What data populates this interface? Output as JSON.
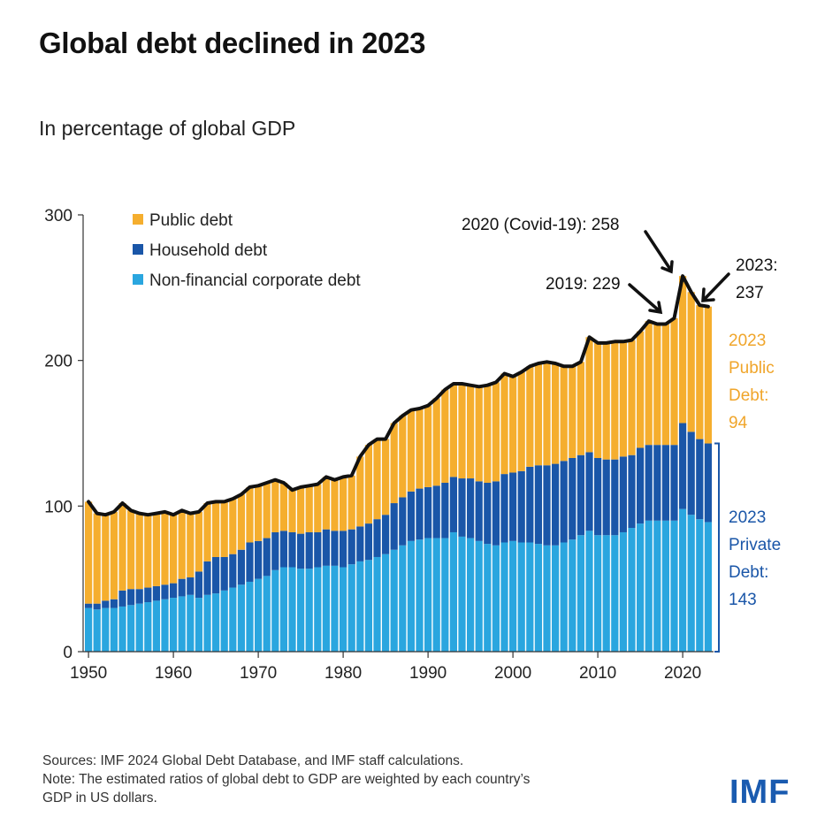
{
  "title": "Global debt declined in 2023",
  "subtitle": "In percentage of global GDP",
  "footer": {
    "sources": "Sources: IMF 2024 Global Debt Database, and IMF staff calculations.",
    "note_line1": "Note: The estimated ratios of global debt to GDP are weighted by each country’s",
    "note_line2": "GDP in US dollars."
  },
  "logo": "IMF",
  "colors": {
    "public": "#F5AE2E",
    "household": "#1A56A8",
    "corporate": "#2AA6DF",
    "total_line": "#111111",
    "public_label": "#F0A52A",
    "private_label": "#1A56A8"
  },
  "chart_data": {
    "type": "bar",
    "stacked": true,
    "ylim": [
      0,
      300
    ],
    "yticks": [
      "0",
      "100",
      "200",
      "300"
    ],
    "xticks": [
      "1950",
      "1960",
      "1970",
      "1980",
      "1990",
      "2000",
      "2010",
      "2020"
    ],
    "legend": [
      "Public debt",
      "Household debt",
      "Non-financial corporate debt"
    ],
    "legend_position": "top-left",
    "x": [
      1950,
      1951,
      1952,
      1953,
      1954,
      1955,
      1956,
      1957,
      1958,
      1959,
      1960,
      1961,
      1962,
      1963,
      1964,
      1965,
      1966,
      1967,
      1968,
      1969,
      1970,
      1971,
      1972,
      1973,
      1974,
      1975,
      1976,
      1977,
      1978,
      1979,
      1980,
      1981,
      1982,
      1983,
      1984,
      1985,
      1986,
      1987,
      1988,
      1989,
      1990,
      1991,
      1992,
      1993,
      1994,
      1995,
      1996,
      1997,
      1998,
      1999,
      2000,
      2001,
      2002,
      2003,
      2004,
      2005,
      2006,
      2007,
      2008,
      2009,
      2010,
      2011,
      2012,
      2013,
      2014,
      2015,
      2016,
      2017,
      2018,
      2019,
      2020,
      2021,
      2022,
      2023
    ],
    "series": [
      {
        "name": "Non-financial corporate debt",
        "values": [
          30,
          29,
          30,
          30,
          31,
          32,
          33,
          34,
          35,
          36,
          37,
          38,
          39,
          37,
          39,
          40,
          42,
          44,
          46,
          48,
          50,
          52,
          56,
          58,
          58,
          57,
          57,
          58,
          59,
          59,
          58,
          60,
          62,
          63,
          65,
          67,
          70,
          73,
          76,
          77,
          78,
          78,
          78,
          82,
          79,
          78,
          76,
          74,
          73,
          75,
          76,
          75,
          75,
          74,
          73,
          73,
          75,
          77,
          80,
          83,
          80,
          80,
          80,
          82,
          85,
          88,
          90,
          90,
          90,
          90,
          98,
          94,
          91,
          89
        ]
      },
      {
        "name": "Household debt",
        "values": [
          3,
          4,
          5,
          6,
          11,
          11,
          10,
          10,
          10,
          10,
          10,
          12,
          12,
          18,
          23,
          25,
          23,
          23,
          24,
          27,
          26,
          26,
          26,
          25,
          24,
          24,
          25,
          24,
          25,
          24,
          25,
          24,
          24,
          25,
          26,
          27,
          32,
          33,
          34,
          35,
          35,
          36,
          38,
          38,
          40,
          41,
          41,
          42,
          44,
          47,
          47,
          49,
          52,
          54,
          55,
          56,
          56,
          56,
          55,
          54,
          53,
          52,
          52,
          52,
          50,
          52,
          52,
          52,
          52,
          52,
          59,
          57,
          55,
          54
        ]
      },
      {
        "name": "Public debt",
        "values": [
          70,
          62,
          59,
          60,
          60,
          54,
          52,
          50,
          50,
          50,
          47,
          47,
          44,
          41,
          40,
          38,
          38,
          38,
          38,
          38,
          38,
          38,
          36,
          33,
          29,
          32,
          32,
          33,
          36,
          35,
          37,
          37,
          48,
          54,
          55,
          52,
          55,
          56,
          56,
          55,
          56,
          60,
          64,
          64,
          65,
          64,
          65,
          67,
          68,
          69,
          66,
          68,
          69,
          70,
          71,
          69,
          65,
          63,
          64,
          79,
          79,
          80,
          81,
          79,
          79,
          80,
          85,
          83,
          83,
          87,
          101,
          96,
          92,
          94
        ]
      }
    ],
    "totals": [
      103,
      95,
      94,
      96,
      102,
      97,
      95,
      94,
      95,
      96,
      94,
      97,
      95,
      96,
      102,
      103,
      103,
      105,
      108,
      113,
      114,
      116,
      118,
      116,
      111,
      113,
      114,
      115,
      120,
      118,
      120,
      121,
      134,
      142,
      146,
      146,
      157,
      162,
      166,
      167,
      169,
      174,
      180,
      184,
      184,
      183,
      182,
      183,
      185,
      191,
      189,
      192,
      196,
      198,
      199,
      198,
      196,
      196,
      199,
      216,
      212,
      212,
      213,
      213,
      214,
      220,
      227,
      225,
      225,
      229,
      258,
      247,
      238,
      237
    ],
    "annotations": [
      {
        "text": "2020 (Covid-19): 258",
        "year": 2020,
        "value": 258
      },
      {
        "text": "2019: 229",
        "year": 2019,
        "value": 229
      },
      {
        "text_line1": "2023:",
        "text_line2": "237",
        "year": 2023,
        "value": 237
      }
    ],
    "side_labels": {
      "public": {
        "lines": [
          "2023",
          "Public",
          "Debt:",
          "94"
        ]
      },
      "private": {
        "lines": [
          "2023",
          "Private",
          "Debt:",
          "143"
        ]
      }
    }
  }
}
